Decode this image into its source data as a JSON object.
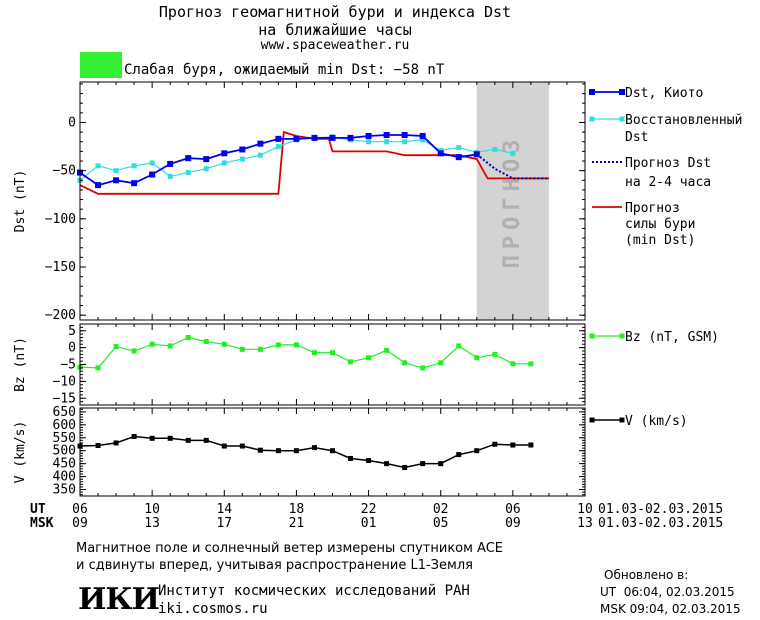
{
  "header": {
    "title_line1": "Прогноз геомагнитной бури и индекса Dst",
    "title_line2": "на ближайшие часы",
    "url": "www.spaceweather.ru"
  },
  "status": {
    "text": "Слабая буря, ожидаемый min Dst: −58 nT",
    "color": "#33ee33"
  },
  "legend": {
    "dst_kyoto": "Dst, Киото",
    "restored_1": "Восстановленный",
    "restored_2": "Dst",
    "forecast_1": "Прогноз Dst",
    "forecast_2": "на 2-4 часа",
    "storm_1": "Прогноз",
    "storm_2": "силы бури",
    "storm_3": "(min Dst)",
    "bz": "Bz (nT, GSM)",
    "v": "V (km/s)"
  },
  "forecast_band_label": "ПРОГНОЗ",
  "time_axis": {
    "ut_label": "UT",
    "msk_label": "MSK",
    "ut_ticks": [
      "06",
      "10",
      "14",
      "18",
      "22",
      "02",
      "06",
      "10"
    ],
    "msk_ticks": [
      "09",
      "13",
      "17",
      "21",
      "01",
      "05",
      "09",
      "13"
    ],
    "ut_range": "01.03-02.03.2015",
    "msk_range": "01.03-02.03.2015"
  },
  "footer": {
    "note_line1": "Магнитное поле и солнечный ветер измерены спутником ACE",
    "note_line2": "и сдвинуты вперед, учитывая распространение L1-Земля",
    "logo": "ИКИ",
    "institute": "Институт космических исследований РАН",
    "institute_url": "iki.cosmos.ru",
    "updated_label": "Обновлено в:",
    "updated_ut": "UT  06:04, 02.03.2015",
    "updated_msk": "MSK 09:04, 02.03.2015"
  },
  "chart_data": [
    {
      "type": "line",
      "ylabel": "Dst (nT)",
      "xlim": [
        6,
        34
      ],
      "ylim": [
        -205,
        42
      ],
      "yticks": [
        0,
        -50,
        -100,
        -150,
        -200
      ],
      "forecast_band": [
        28,
        32
      ],
      "series": [
        {
          "name": "Dst, Киото",
          "color": "#0000ee",
          "x": [
            6,
            7,
            8,
            9,
            10,
            11,
            12,
            13,
            14,
            15,
            16,
            17,
            18,
            19,
            20,
            21,
            22,
            23,
            24,
            25,
            26,
            27,
            28
          ],
          "values": [
            -52,
            -65,
            -60,
            -63,
            -54,
            -43,
            -37,
            -38,
            -32,
            -28,
            -22,
            -17,
            -17,
            -16,
            -16,
            -16,
            -14,
            -13,
            -13,
            -14,
            -32,
            -36,
            -33
          ]
        },
        {
          "name": "Восстановленный Dst",
          "color": "#33dddd",
          "x": [
            6,
            7,
            8,
            9,
            10,
            11,
            12,
            13,
            14,
            15,
            16,
            17,
            18,
            19,
            20,
            21,
            22,
            23,
            24,
            25,
            26,
            27,
            28,
            29,
            30
          ],
          "values": [
            -60,
            -45,
            -50,
            -45,
            -42,
            -56,
            -52,
            -48,
            -42,
            -38,
            -34,
            -25,
            -18,
            -16,
            -15,
            -18,
            -20,
            -20,
            -20,
            -18,
            -29,
            -26,
            -31,
            -28,
            -32
          ]
        },
        {
          "name": "Прогноз Dst на 2-4 часа",
          "color": "#0000aa",
          "x": [
            28,
            29,
            30,
            31,
            32
          ],
          "values": [
            -33,
            -48,
            -58,
            -58,
            -58
          ]
        },
        {
          "name": "Прогноз силы бури (min Dst)",
          "color": "#dd0000",
          "x": [
            6,
            7,
            8,
            9,
            10,
            11,
            12,
            13,
            14,
            15,
            16,
            17,
            17.3,
            18,
            19,
            19.8,
            20,
            21,
            22,
            23,
            24,
            25,
            26,
            27,
            28,
            28.6,
            29,
            30,
            31,
            32
          ],
          "values": [
            -65,
            -74,
            -74,
            -74,
            -74,
            -74,
            -74,
            -74,
            -74,
            -74,
            -74,
            -74,
            -10,
            -14,
            -17,
            -17,
            -30,
            -30,
            -30,
            -30,
            -34,
            -34,
            -34,
            -34,
            -38,
            -58,
            -58,
            -58,
            -58,
            -58
          ]
        }
      ]
    },
    {
      "type": "line",
      "ylabel": "Bz (nT)",
      "xlim": [
        6,
        34
      ],
      "ylim": [
        -17,
        7
      ],
      "yticks": [
        5,
        0,
        -5,
        -10,
        -15
      ],
      "series": [
        {
          "name": "Bz (nT, GSM)",
          "color": "#22ee22",
          "x": [
            6,
            7,
            8,
            9,
            10,
            11,
            12,
            13,
            14,
            15,
            16,
            17,
            18,
            19,
            20,
            21,
            22,
            23,
            24,
            25,
            26,
            27,
            28,
            29,
            30,
            31
          ],
          "values": [
            -5.8,
            -6.0,
            0.3,
            -1.0,
            1.0,
            0.5,
            3.0,
            1.8,
            1.0,
            -0.5,
            -0.5,
            0.8,
            0.8,
            -1.5,
            -1.5,
            -4.2,
            -3.0,
            -0.8,
            -4.5,
            -6.0,
            -4.5,
            0.5,
            -3.0,
            -2.0,
            -4.8,
            -4.8
          ]
        }
      ]
    },
    {
      "type": "line",
      "ylabel": "V (km/s)",
      "xlim": [
        6,
        34
      ],
      "ylim": [
        325,
        665
      ],
      "yticks": [
        650,
        600,
        550,
        500,
        450,
        400,
        350
      ],
      "series": [
        {
          "name": "V (km/s)",
          "color": "#000000",
          "x": [
            6,
            7,
            8,
            9,
            10,
            11,
            12,
            13,
            14,
            15,
            16,
            17,
            18,
            19,
            20,
            21,
            22,
            23,
            24,
            25,
            26,
            27,
            28,
            29,
            30,
            31
          ],
          "values": [
            518,
            520,
            530,
            555,
            548,
            548,
            540,
            540,
            518,
            518,
            502,
            500,
            500,
            512,
            500,
            470,
            462,
            450,
            435,
            450,
            450,
            485,
            500,
            525,
            522,
            522
          ]
        }
      ]
    }
  ]
}
